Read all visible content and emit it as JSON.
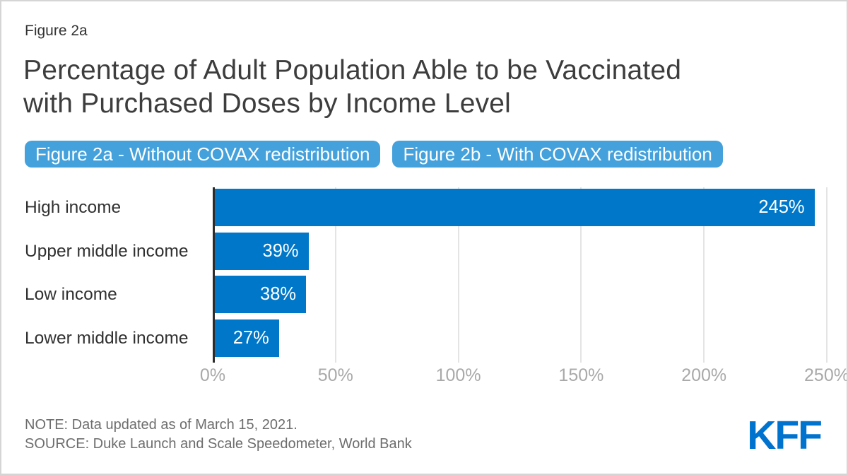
{
  "header": {
    "figure_label": "Figure 2a",
    "title_lines": [
      "Percentage of Adult Population Able to be Vaccinated",
      "with Purchased Doses by Income Level"
    ]
  },
  "tabs": [
    {
      "label": "Figure 2a - Without COVAX redistribution"
    },
    {
      "label": "Figure 2b - With COVAX redistribution"
    }
  ],
  "chart_data": {
    "type": "bar",
    "orientation": "horizontal",
    "title": "Percentage of Adult Population Able to be Vaccinated with Purchased Doses by Income Level",
    "categories": [
      "High income",
      "Upper middle income",
      "Low income",
      "Lower middle income"
    ],
    "values": [
      245,
      39,
      38,
      27
    ],
    "value_labels": [
      "245%",
      "39%",
      "38%",
      "27%"
    ],
    "x_tick_values": [
      0,
      50,
      100,
      150,
      200,
      250
    ],
    "x_tick_labels": [
      "0%",
      "50%",
      "100%",
      "150%",
      "200%",
      "250%"
    ],
    "xlim": [
      0,
      250
    ],
    "grid": true,
    "legend": "none"
  },
  "footer": {
    "note": "NOTE: Data updated as of March 15, 2021.",
    "source": "SOURCE: Duke Launch and Scale Speedometer, World Bank",
    "logo_text": "KFF"
  },
  "colors": {
    "bar_blue": "#0077C8",
    "tab_blue": "#45A1DB",
    "logo_blue": "#0073CF",
    "axis_line": "#2b2b2b",
    "gridline": "#e4e4e4"
  }
}
